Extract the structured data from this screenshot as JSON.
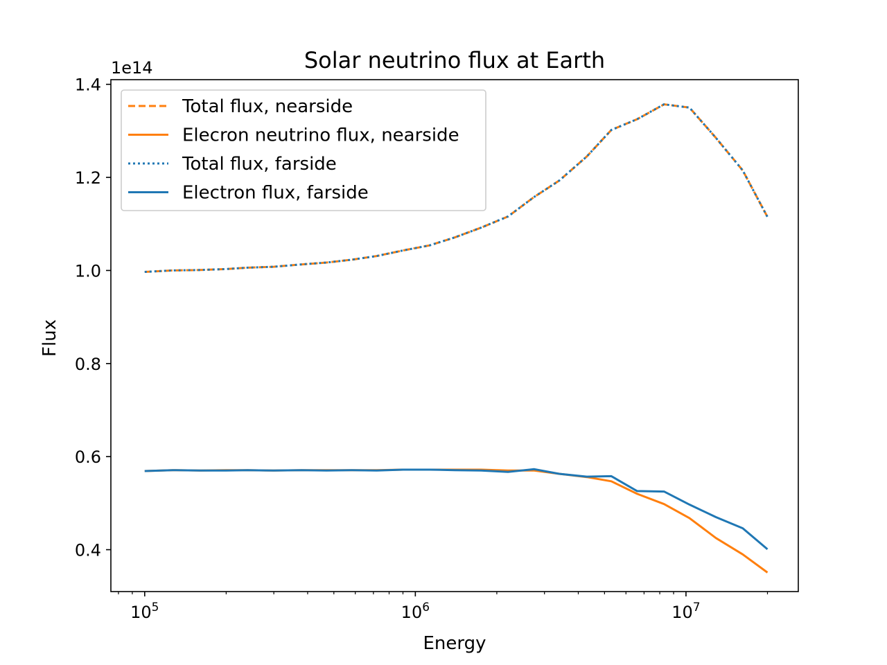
{
  "chart_data": {
    "type": "line",
    "title": "Solar neutrino flux at Earth",
    "xlabel": "Energy",
    "ylabel": "Flux",
    "xscale": "log",
    "xlim": [
      75000,
      26000000
    ],
    "ylim": [
      31000000000000.0,
      141000000000000.0
    ],
    "y_offset_label": "1e14",
    "x_ticks": [
      {
        "value": 100000,
        "base": "10",
        "exp": "5"
      },
      {
        "value": 1000000,
        "base": "10",
        "exp": "6"
      },
      {
        "value": 10000000,
        "base": "10",
        "exp": "7"
      }
    ],
    "y_ticks": [
      {
        "value": 40000000000000.0,
        "label": "0.4"
      },
      {
        "value": 60000000000000.0,
        "label": "0.6"
      },
      {
        "value": 80000000000000.0,
        "label": "0.8"
      },
      {
        "value": 100000000000000.0,
        "label": "1.0"
      },
      {
        "value": 120000000000000.0,
        "label": "1.2"
      },
      {
        "value": 140000000000000.0,
        "label": "1.4"
      }
    ],
    "grid": false,
    "legend_position": "upper left",
    "x": [
      100000,
      127000,
      160000,
      200000,
      240000,
      300000,
      380000,
      470000,
      580000,
      720000,
      900000,
      1130000,
      1400000,
      1750000,
      2200000,
      2750000,
      3400000,
      4300000,
      5300000,
      6600000,
      8300000,
      10300000,
      12900000,
      16200000,
      20000000
    ],
    "series": [
      {
        "name": "Total flux, nearside",
        "color": "#ff7f0e",
        "style": "dashed",
        "values": [
          99700000000000.0,
          100000000000000.0,
          100100000000000.0,
          100300000000000.0,
          100600000000000.0,
          100800000000000.0,
          101300000000000.0,
          101700000000000.0,
          102300000000000.0,
          103100000000000.0,
          104300000000000.0,
          105400000000000.0,
          107100000000000.0,
          109200000000000.0,
          111600000000000.0,
          115800000000000.0,
          119300000000000.0,
          124500000000000.0,
          130200000000000.0,
          132500000000000.0,
          135700000000000.0,
          135000000000000.0,
          128500000000000.0,
          121500000000000.0,
          111500000000000.0
        ]
      },
      {
        "name": "Elecron neutrino flux, nearside",
        "color": "#ff7f0e",
        "style": "solid",
        "values": [
          56900000000000.0,
          57100000000000.0,
          57000000000000.0,
          57100000000000.0,
          57100000000000.0,
          57000000000000.0,
          57100000000000.0,
          57100000000000.0,
          57100000000000.0,
          57100000000000.0,
          57200000000000.0,
          57200000000000.0,
          57200000000000.0,
          57200000000000.0,
          57000000000000.0,
          57000000000000.0,
          56300000000000.0,
          55600000000000.0,
          54700000000000.0,
          52000000000000.0,
          49800000000000.0,
          46800000000000.0,
          42500000000000.0,
          39000000000000.0,
          35100000000000.0
        ]
      },
      {
        "name": "Total flux, farside",
        "color": "#1f77b4",
        "style": "dotted",
        "values": [
          99700000000000.0,
          100000000000000.0,
          100100000000000.0,
          100300000000000.0,
          100600000000000.0,
          100800000000000.0,
          101300000000000.0,
          101700000000000.0,
          102300000000000.0,
          103100000000000.0,
          104300000000000.0,
          105400000000000.0,
          107100000000000.0,
          109200000000000.0,
          111600000000000.0,
          115800000000000.0,
          119300000000000.0,
          124500000000000.0,
          130200000000000.0,
          132500000000000.0,
          135700000000000.0,
          135000000000000.0,
          128500000000000.0,
          121500000000000.0,
          111500000000000.0
        ]
      },
      {
        "name": "Electron flux, farside",
        "color": "#1f77b4",
        "style": "solid",
        "values": [
          56900000000000.0,
          57100000000000.0,
          57000000000000.0,
          57000000000000.0,
          57100000000000.0,
          57000000000000.0,
          57100000000000.0,
          57000000000000.0,
          57100000000000.0,
          57000000000000.0,
          57200000000000.0,
          57200000000000.0,
          57100000000000.0,
          57000000000000.0,
          56700000000000.0,
          57300000000000.0,
          56300000000000.0,
          55700000000000.0,
          55800000000000.0,
          52600000000000.0,
          52500000000000.0,
          49700000000000.0,
          47000000000000.0,
          44600000000000.0,
          40100000000000.0
        ]
      }
    ]
  }
}
